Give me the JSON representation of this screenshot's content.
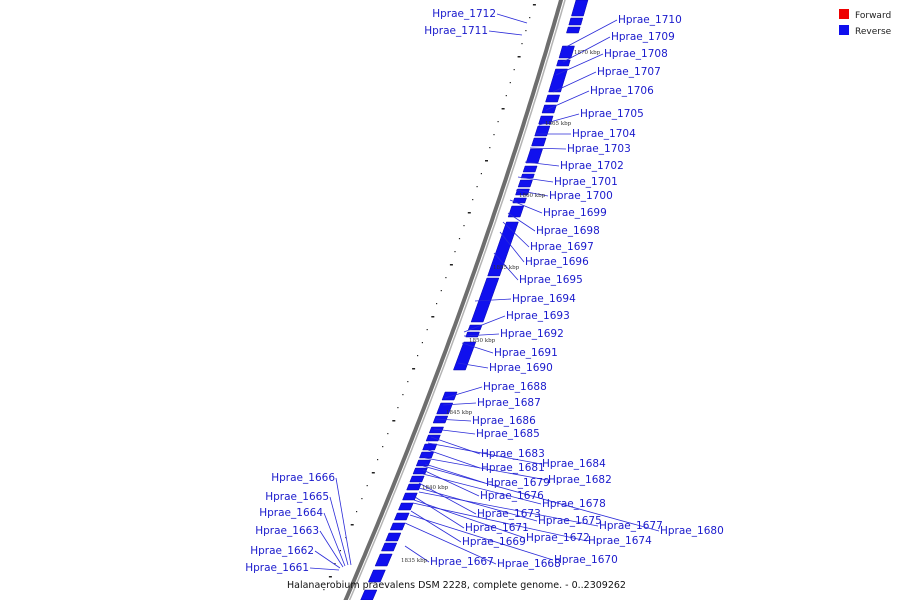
{
  "caption": "Halanaerobium praevalens DSM 2228, complete genome. - 0..2309262",
  "legend": {
    "items": [
      {
        "label": "Forward",
        "color": "#ee0000"
      },
      {
        "label": "Reverse",
        "color": "#1010ee"
      }
    ]
  },
  "genes": [
    "Hprae_1712",
    "Hprae_1711",
    "Hprae_1710",
    "Hprae_1709",
    "Hprae_1708",
    "Hprae_1707",
    "Hprae_1706",
    "Hprae_1705",
    "Hprae_1704",
    "Hprae_1703",
    "Hprae_1702",
    "Hprae_1701",
    "Hprae_1700",
    "Hprae_1699",
    "Hprae_1698",
    "Hprae_1697",
    "Hprae_1696",
    "Hprae_1695",
    "Hprae_1694",
    "Hprae_1693",
    "Hprae_1692",
    "Hprae_1691",
    "Hprae_1690",
    "Hprae_1688",
    "Hprae_1687",
    "Hprae_1686",
    "Hprae_1685",
    "Hprae_1683",
    "Hprae_1684",
    "Hprae_1681",
    "Hprae_1682",
    "Hprae_1679",
    "Hprae_1676",
    "Hprae_1678",
    "Hprae_1673",
    "Hprae_1675",
    "Hprae_1677",
    "Hprae_1680",
    "Hprae_1671",
    "Hprae_1672",
    "Hprae_1674",
    "Hprae_1669",
    "Hprae_1670",
    "Hprae_1668",
    "Hprae_1667",
    "Hprae_1666",
    "Hprae_1665",
    "Hprae_1664",
    "Hprae_1663",
    "Hprae_1662",
    "Hprae_1661"
  ],
  "ticks": [
    "1870 kbp",
    "1865 kbp",
    "1860 kbp",
    "1855 kbp",
    "1850 kbp",
    "1845 kbp",
    "1840 kbp",
    "1835 kbp"
  ]
}
